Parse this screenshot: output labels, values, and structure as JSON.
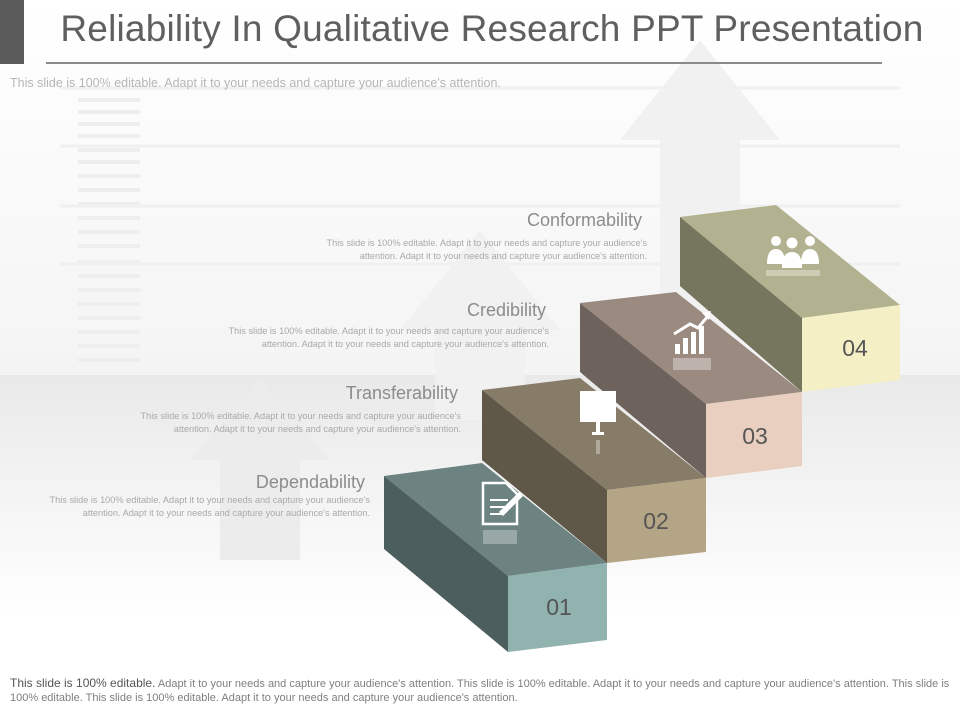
{
  "slide": {
    "title": "Reliability In Qualitative Research PPT Presentation",
    "subtitle": "This slide is 100% editable. Adapt it to your needs and capture your audience's attention."
  },
  "steps": [
    {
      "number": "01",
      "label": "Dependability",
      "icon": "document-pen-icon",
      "desc": "This slide is 100% editable. Adapt it to your needs and capture your audience's attention. Adapt it to your needs and capture your audience's attention.",
      "color": "#90b3b0"
    },
    {
      "number": "02",
      "label": "Transferability",
      "icon": "presentation-board-icon",
      "desc": "This slide is 100% editable. Adapt it to your needs and capture your audience's attention. Adapt it to your needs and capture your audience's attention.",
      "color": "#b3a585"
    },
    {
      "number": "03",
      "label": "Credibility",
      "icon": "growth-chart-icon",
      "desc": "This slide is 100% editable. Adapt it to your needs and capture your audience's attention. Adapt it to your needs and capture your audience's attention.",
      "color": "#e8cfc0"
    },
    {
      "number": "04",
      "label": "Conformability",
      "icon": "team-people-icon",
      "desc": "This slide is 100% editable. Adapt it to your needs and capture your audience's attention. Adapt it to your needs and capture your audience's attention.",
      "color": "#f4efc4"
    }
  ],
  "footer": {
    "lead": "This slide is 100% editable.",
    "text": " Adapt it to your needs and capture your audience's attention. This slide is 100% editable. Adapt it to your needs and capture your audience's attention. This slide is 100% editable. This slide is 100% editable. Adapt it to your needs and capture your audience's attention."
  }
}
